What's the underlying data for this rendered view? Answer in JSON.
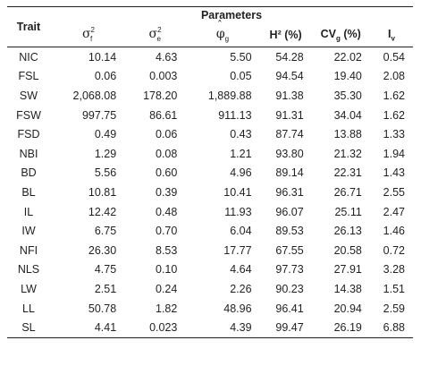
{
  "header": {
    "trait": "Trait",
    "parameters": "Parameters",
    "col_sigma_f_base": "σ",
    "col_sigma_f_sup": "2",
    "col_sigma_f_sub": "f",
    "col_sigma_e_base": "σ",
    "col_sigma_e_sup": "2",
    "col_sigma_e_sub": "e",
    "col_phi_base": "φ",
    "col_phi_sub": "g",
    "col_h2": "H² (%)",
    "col_cvg_base": "CV",
    "col_cvg_sub": "g",
    "col_cvg_unit": " (%)",
    "col_iv_base": "I",
    "col_iv_sub": "v"
  },
  "rows": [
    {
      "trait": "NIC",
      "v": [
        "10.14",
        "4.63",
        "5.50",
        "54.28",
        "22.02",
        "0.54"
      ]
    },
    {
      "trait": "FSL",
      "v": [
        "0.06",
        "0.003",
        "0.05",
        "94.54",
        "19.40",
        "2.08"
      ]
    },
    {
      "trait": "SW",
      "v": [
        "2,068.08",
        "178.20",
        "1,889.88",
        "91.38",
        "35.30",
        "1.62"
      ]
    },
    {
      "trait": "FSW",
      "v": [
        "997.75",
        "86.61",
        "911.13",
        "91.31",
        "34.04",
        "1.62"
      ]
    },
    {
      "trait": "FSD",
      "v": [
        "0.49",
        "0.06",
        "0.43",
        "87.74",
        "13.88",
        "1.33"
      ]
    },
    {
      "trait": "NBI",
      "v": [
        "1.29",
        "0.08",
        "1.21",
        "93.80",
        "21.32",
        "1.94"
      ]
    },
    {
      "trait": "BD",
      "v": [
        "5.56",
        "0.60",
        "4.96",
        "89.14",
        "22.31",
        "1.43"
      ]
    },
    {
      "trait": "BL",
      "v": [
        "10.81",
        "0.39",
        "10.41",
        "96.31",
        "26.71",
        "2.55"
      ]
    },
    {
      "trait": "IL",
      "v": [
        "12.42",
        "0.48",
        "11.93",
        "96.07",
        "25.11",
        "2.47"
      ]
    },
    {
      "trait": "IW",
      "v": [
        "6.75",
        "0.70",
        "6.04",
        "89.53",
        "26.13",
        "1.46"
      ]
    },
    {
      "trait": "NFI",
      "v": [
        "26.30",
        "8.53",
        "17.77",
        "67.55",
        "20.58",
        "0.72"
      ]
    },
    {
      "trait": "NLS",
      "v": [
        "4.75",
        "0.10",
        "4.64",
        "97.73",
        "27.91",
        "3.28"
      ]
    },
    {
      "trait": "LW",
      "v": [
        "2.51",
        "0.24",
        "2.26",
        "90.23",
        "14.38",
        "1.51"
      ]
    },
    {
      "trait": "LL",
      "v": [
        "50.78",
        "1.82",
        "48.96",
        "96.41",
        "20.94",
        "2.59"
      ]
    },
    {
      "trait": "SL",
      "v": [
        "4.41",
        "0.023",
        "4.39",
        "99.47",
        "26.19",
        "6.88"
      ]
    }
  ]
}
